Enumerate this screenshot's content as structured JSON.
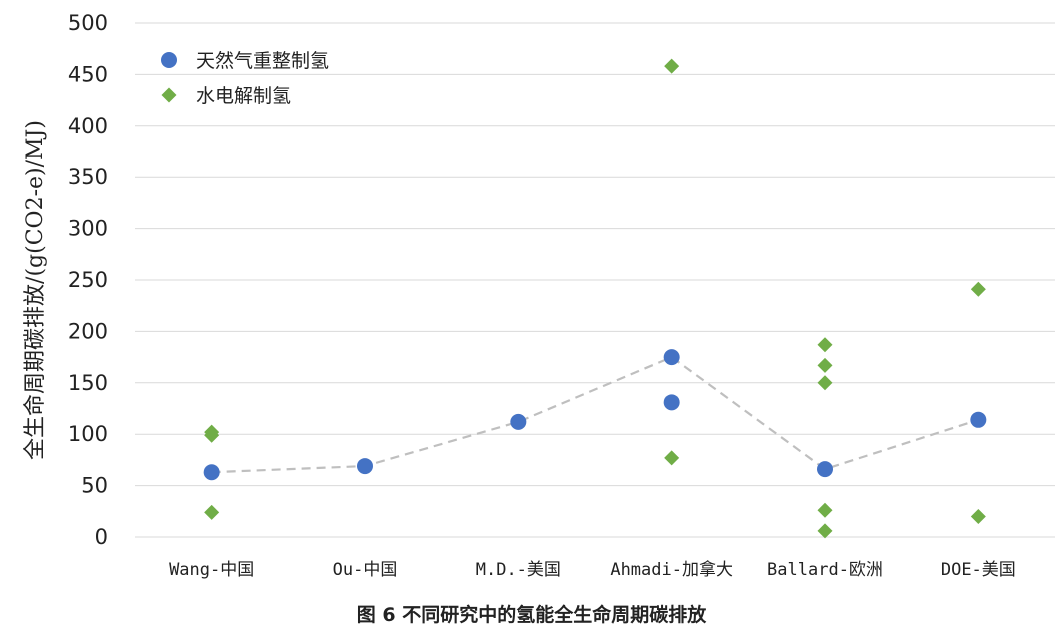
{
  "caption": "图 6   不同研究中的氢能全生命周期碳排放",
  "chart_data": {
    "type": "scatter",
    "ylabel": "全生命周期碳排放/(g(CO2-e)/MJ)",
    "xlabel": "",
    "ylim": [
      0,
      500
    ],
    "yticks": [
      0,
      50,
      100,
      150,
      200,
      250,
      300,
      350,
      400,
      450,
      500
    ],
    "grid": true,
    "legend_position": "top-left",
    "categories": [
      "Wang-中国",
      "Ou-中国",
      "M.D.-美国",
      "Ahmadi-加拿大",
      "Ballard-欧洲",
      "DOE-美国"
    ],
    "series": [
      {
        "name": "天然气重整制氢",
        "marker": "circle",
        "color": "#4472C4",
        "points": [
          {
            "category": "Wang-中国",
            "y": 63
          },
          {
            "category": "Ou-中国",
            "y": 69
          },
          {
            "category": "M.D.-美国",
            "y": 112
          },
          {
            "category": "Ahmadi-加拿大",
            "y": 175
          },
          {
            "category": "Ahmadi-加拿大",
            "y": 131
          },
          {
            "category": "Ballard-欧洲",
            "y": 66
          },
          {
            "category": "DOE-美国",
            "y": 114
          }
        ]
      },
      {
        "name": "水电解制氢",
        "marker": "diamond",
        "color": "#70AD47",
        "points": [
          {
            "category": "Wang-中国",
            "y": 102
          },
          {
            "category": "Wang-中国",
            "y": 99
          },
          {
            "category": "Wang-中国",
            "y": 24
          },
          {
            "category": "Ahmadi-加拿大",
            "y": 458
          },
          {
            "category": "Ahmadi-加拿大",
            "y": 77
          },
          {
            "category": "Ballard-欧洲",
            "y": 187
          },
          {
            "category": "Ballard-欧洲",
            "y": 167
          },
          {
            "category": "Ballard-欧洲",
            "y": 150
          },
          {
            "category": "Ballard-欧洲",
            "y": 26
          },
          {
            "category": "Ballard-欧洲",
            "y": 6
          },
          {
            "category": "DOE-美国",
            "y": 241
          },
          {
            "category": "DOE-美国",
            "y": 20
          }
        ]
      }
    ],
    "trend_line": {
      "style": "dashed",
      "color": "#BFBFBF",
      "values": [
        63,
        69,
        112,
        175,
        66,
        114
      ]
    }
  }
}
